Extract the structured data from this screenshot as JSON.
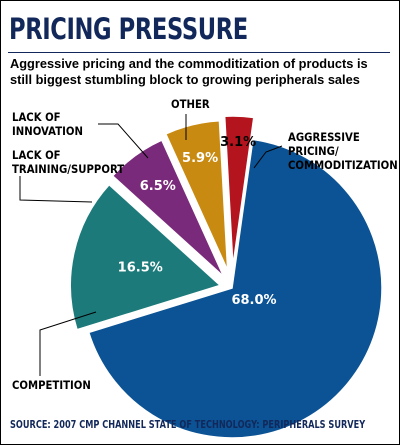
{
  "chart_data": {
    "type": "pie",
    "title": "PRICING PRESSURE",
    "subtitle": "Aggressive pricing and the commoditization of products is still biggest stumbling block to growing peripherals sales",
    "slices": [
      {
        "label": "AGGRESSIVE PRICING/ COMMODITIZATION",
        "value": 68.0,
        "value_label": "68.0%",
        "color": "#0b5394",
        "text_color": "#ffffff",
        "exploded": false
      },
      {
        "label": "COMPETITION",
        "value": 16.5,
        "value_label": "16.5%",
        "color": "#1c7a7a",
        "text_color": "#ffffff",
        "exploded": true
      },
      {
        "label": "LACK OF TRAINING/SUPPORT",
        "value": 6.5,
        "value_label": "6.5%",
        "color": "#7a2a7a",
        "text_color": "#ffffff",
        "exploded": true
      },
      {
        "label": "LACK OF INNOVATION",
        "value": 5.9,
        "value_label": "5.9%",
        "color": "#c98a12",
        "text_color": "#ffffff",
        "exploded": true
      },
      {
        "label": "OTHER",
        "value": 3.1,
        "value_label": "3.1%",
        "color": "#b3141d",
        "text_color": "#000000",
        "exploded": true
      }
    ],
    "source": "SOURCE: 2007 CMP CHANNEL STATE OF TECHNOLOGY: PERIPHERALS SURVEY"
  }
}
